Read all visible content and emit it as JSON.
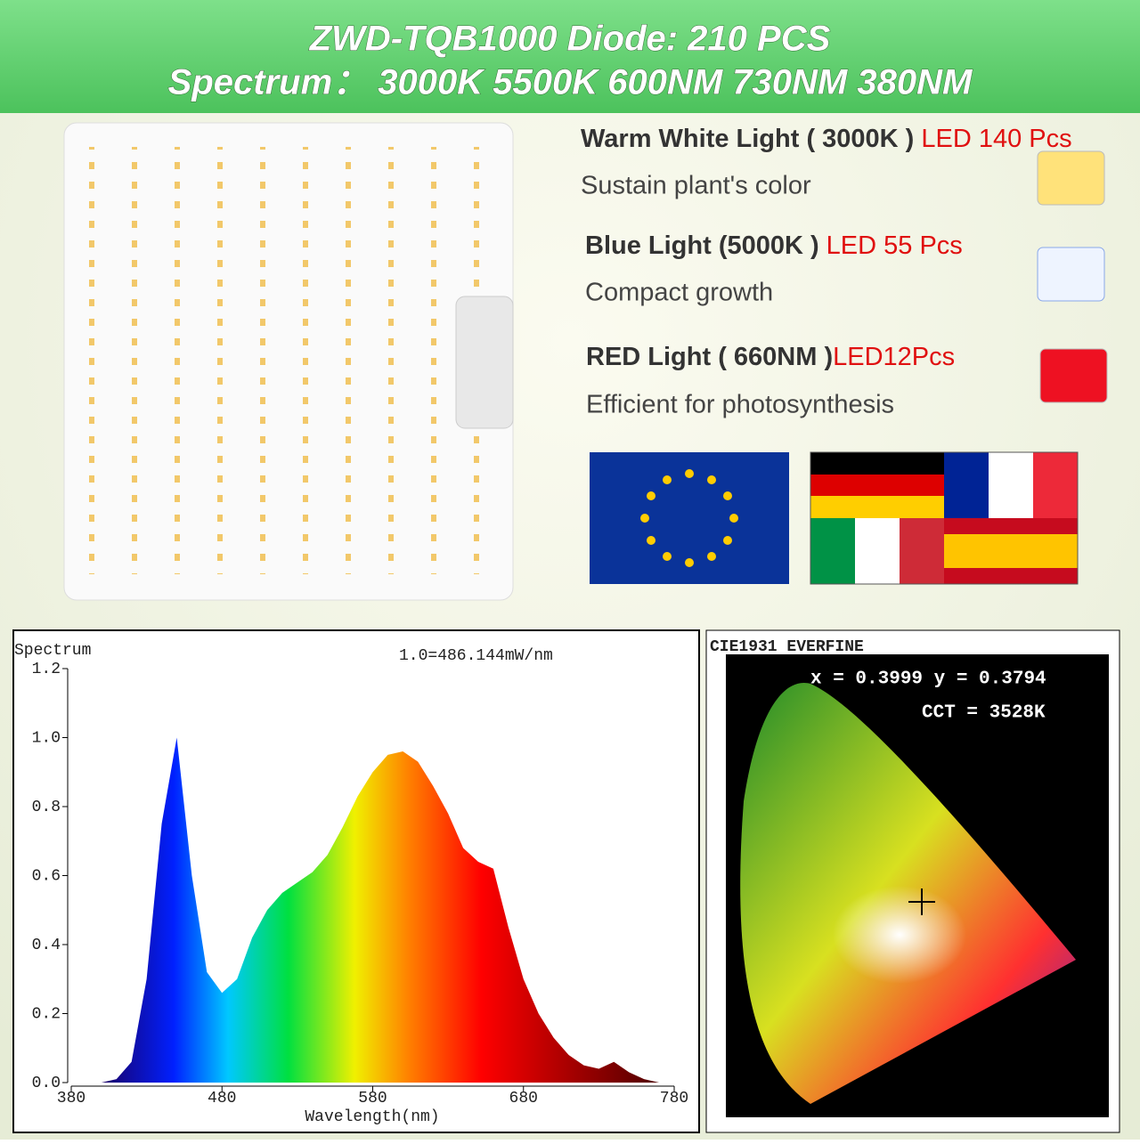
{
  "header": {
    "line1": "ZWD-TQB1000  Diode: 210 PCS",
    "line2": "Spectrum：  3000K 5500K 600NM 730NM 380NM"
  },
  "features": [
    {
      "title": "Warm White Light ( 3000K )",
      "led": "LED 140 Pcs",
      "description": "Sustain plant's color"
    },
    {
      "title": "Blue Light (5000K )",
      "led": "LED 55 Pcs",
      "description": "Compact growth"
    },
    {
      "title": "RED Light ( 660NM )",
      "led": "LED12Pcs",
      "description": "Efficient for photosynthesis"
    }
  ],
  "chart_data": {
    "type": "area",
    "title": "Spectrum",
    "note": "1.0=486.144mW/nm",
    "x_label": "Wavelength(nm)",
    "x": [
      380,
      390,
      400,
      410,
      420,
      430,
      440,
      450,
      460,
      470,
      480,
      490,
      500,
      510,
      520,
      530,
      540,
      550,
      560,
      570,
      580,
      590,
      600,
      610,
      620,
      630,
      640,
      650,
      660,
      670,
      680,
      690,
      700,
      710,
      720,
      730,
      740,
      750,
      760,
      770,
      780
    ],
    "values": [
      0,
      0,
      0,
      0.01,
      0.06,
      0.3,
      0.75,
      1.0,
      0.6,
      0.32,
      0.26,
      0.3,
      0.42,
      0.5,
      0.55,
      0.58,
      0.61,
      0.66,
      0.74,
      0.83,
      0.9,
      0.95,
      0.96,
      0.93,
      0.86,
      0.78,
      0.68,
      0.64,
      0.62,
      0.45,
      0.3,
      0.2,
      0.13,
      0.08,
      0.05,
      0.04,
      0.06,
      0.03,
      0.01,
      0,
      0
    ],
    "xlim": [
      380,
      780
    ],
    "xticks": [
      380,
      480,
      580,
      680,
      780
    ],
    "ylim": [
      0,
      1.2
    ],
    "yticks": [
      {
        "value": 0,
        "label": "0.0"
      },
      0.2,
      0.4,
      0.6,
      0.8,
      {
        "value": 1.0,
        "label": "1.0"
      },
      1.2
    ]
  },
  "cie": {
    "title": "CIE1931 EVERFINE",
    "coords": "x = 0.3999 y = 0.3794",
    "cct": "CCT = 3528K"
  }
}
